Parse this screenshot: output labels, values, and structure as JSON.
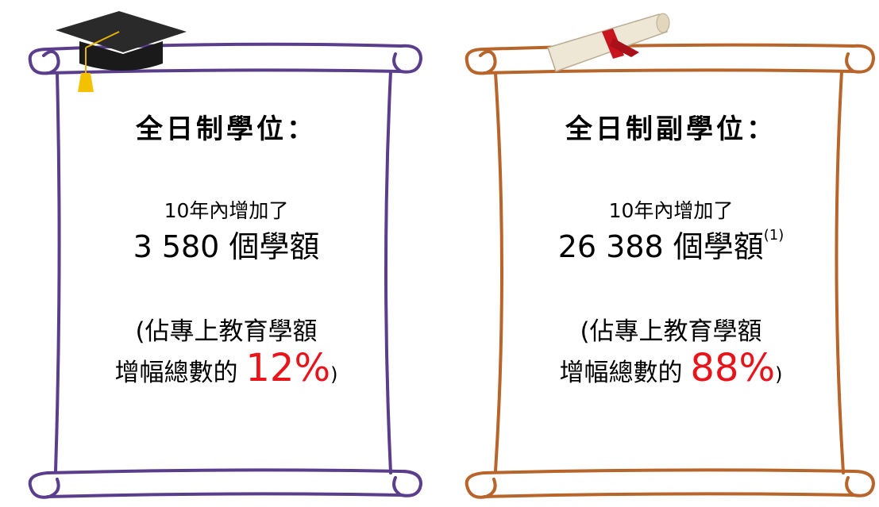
{
  "panels": [
    {
      "title": "全日制學位：",
      "intro": "10年內增加了",
      "places": "3 580 個學額",
      "note": null,
      "share_line1": "(佔專上教育學額",
      "share_prefix": "增幅總數的",
      "share_percent": "12%",
      "share_suffix": ")"
    },
    {
      "title": "全日制副學位：",
      "intro": "10年內增加了",
      "places": "26 388 個學額",
      "note": "(1)",
      "share_line1": "(佔專上教育學額",
      "share_prefix": "增幅總數的",
      "share_percent": "88%",
      "share_suffix": ")"
    }
  ]
}
